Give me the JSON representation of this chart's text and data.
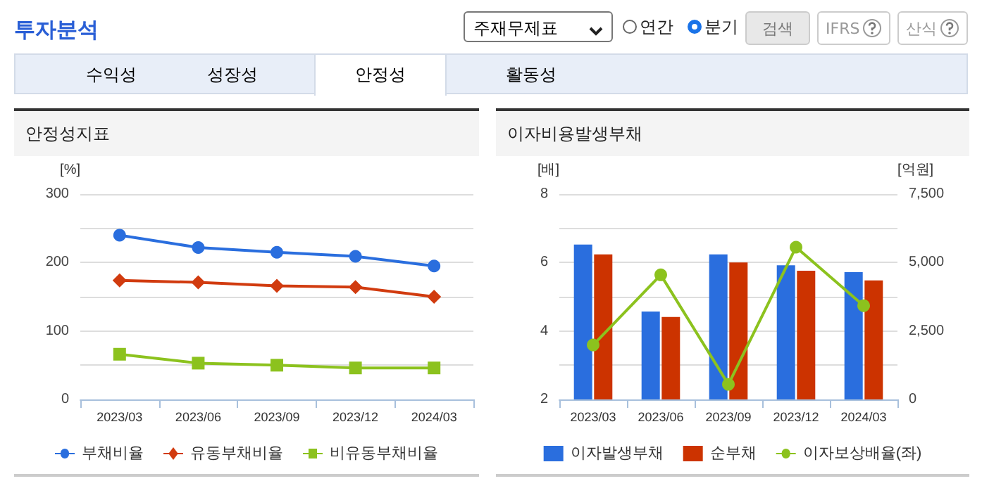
{
  "chart_data": [
    {
      "type": "other",
      "title": "투자분석",
      "annotations": [
        "주재무제표",
        "연간",
        "분기",
        "검색",
        "IFRS",
        "산식",
        "수익성",
        "성장성",
        "안정성",
        "활동성"
      ]
    },
    {
      "type": "line",
      "title": "안정성지표",
      "ylabel": "[%]",
      "categories": [
        "2023/03",
        "2023/06",
        "2023/09",
        "2023/12",
        "2024/03"
      ],
      "series": [
        {
          "name": "부채비율",
          "color": "#2a6ede",
          "marker": "circle",
          "values": [
            240,
            222,
            215,
            209,
            195
          ]
        },
        {
          "name": "유동부채비율",
          "color": "#d13b0f",
          "marker": "diamond",
          "values": [
            174,
            171,
            166,
            164,
            150
          ]
        },
        {
          "name": "비유동부채비율",
          "color": "#8cc21e",
          "marker": "square",
          "values": [
            66,
            53,
            50,
            46,
            46
          ]
        }
      ],
      "ylim": [
        0,
        300
      ],
      "yticks": [
        0,
        100,
        200,
        300
      ],
      "grid": "y",
      "legend": "bottom",
      "line_style": "solid"
    },
    {
      "type": "bar",
      "title": "이자비용발생부채",
      "ylabel": "[배]",
      "y2label": "[억원]",
      "categories": [
        "2023/03",
        "2023/06",
        "2023/09",
        "2023/12",
        "2024/03"
      ],
      "series": [
        {
          "name": "이자발생부채",
          "color": "#2a6ede",
          "axis": "y2",
          "values": [
            5660,
            3210,
            5300,
            4900,
            4650
          ]
        },
        {
          "name": "순부채",
          "color": "#cc3300",
          "axis": "y2",
          "values": [
            5300,
            3010,
            5000,
            4700,
            4350
          ]
        },
        {
          "name": "이자보상배율(좌)",
          "type": "line",
          "color": "#8cc21e",
          "marker": "circle",
          "values": [
            3.59,
            5.64,
            2.44,
            6.45,
            4.74
          ]
        }
      ],
      "ylim": [
        2,
        8
      ],
      "yticks": [
        2,
        4,
        6,
        8
      ],
      "y2lim": [
        0,
        7500
      ],
      "y2ticks": [
        0,
        {
          "value": 2500,
          "label": "2,500"
        },
        {
          "value": 5000,
          "label": "5,000"
        },
        {
          "value": 7500,
          "label": "7,500"
        }
      ],
      "grid": "y",
      "legend": "bottom",
      "line_style": "solid"
    }
  ]
}
